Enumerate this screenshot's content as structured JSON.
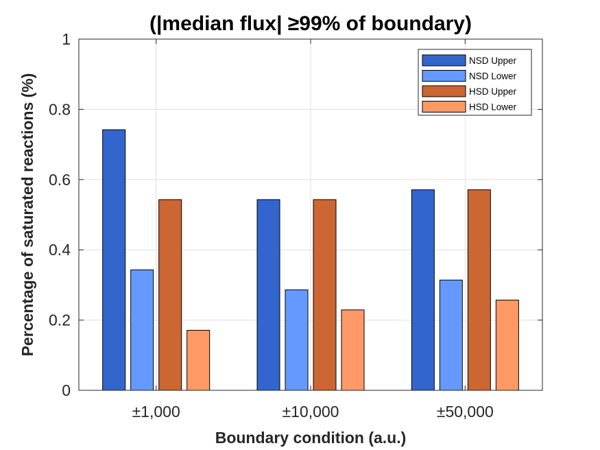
{
  "chart_data": {
    "type": "bar",
    "title": "(|median flux| ≥99% of boundary)",
    "xlabel": "Boundary condition (a.u.)",
    "ylabel": "Percentage of saturated reactions (%)",
    "categories": [
      "±1,000",
      "±10,000",
      "±50,000"
    ],
    "ylim": [
      0,
      1
    ],
    "yticks": [
      "0",
      "0.2",
      "0.4",
      "0.6",
      "0.8",
      "1"
    ],
    "grid": true,
    "legend_position": "top-right",
    "series": [
      {
        "name": "NSD Upper",
        "color": "#3366cc",
        "values": [
          0.742,
          0.543,
          0.571
        ]
      },
      {
        "name": "NSD Lower",
        "color": "#6699ff",
        "values": [
          0.343,
          0.286,
          0.314
        ]
      },
      {
        "name": "HSD Upper",
        "color": "#cc6633",
        "values": [
          0.543,
          0.543,
          0.571
        ]
      },
      {
        "name": "HSD Lower",
        "color": "#ff9966",
        "values": [
          0.171,
          0.229,
          0.257
        ]
      }
    ]
  }
}
